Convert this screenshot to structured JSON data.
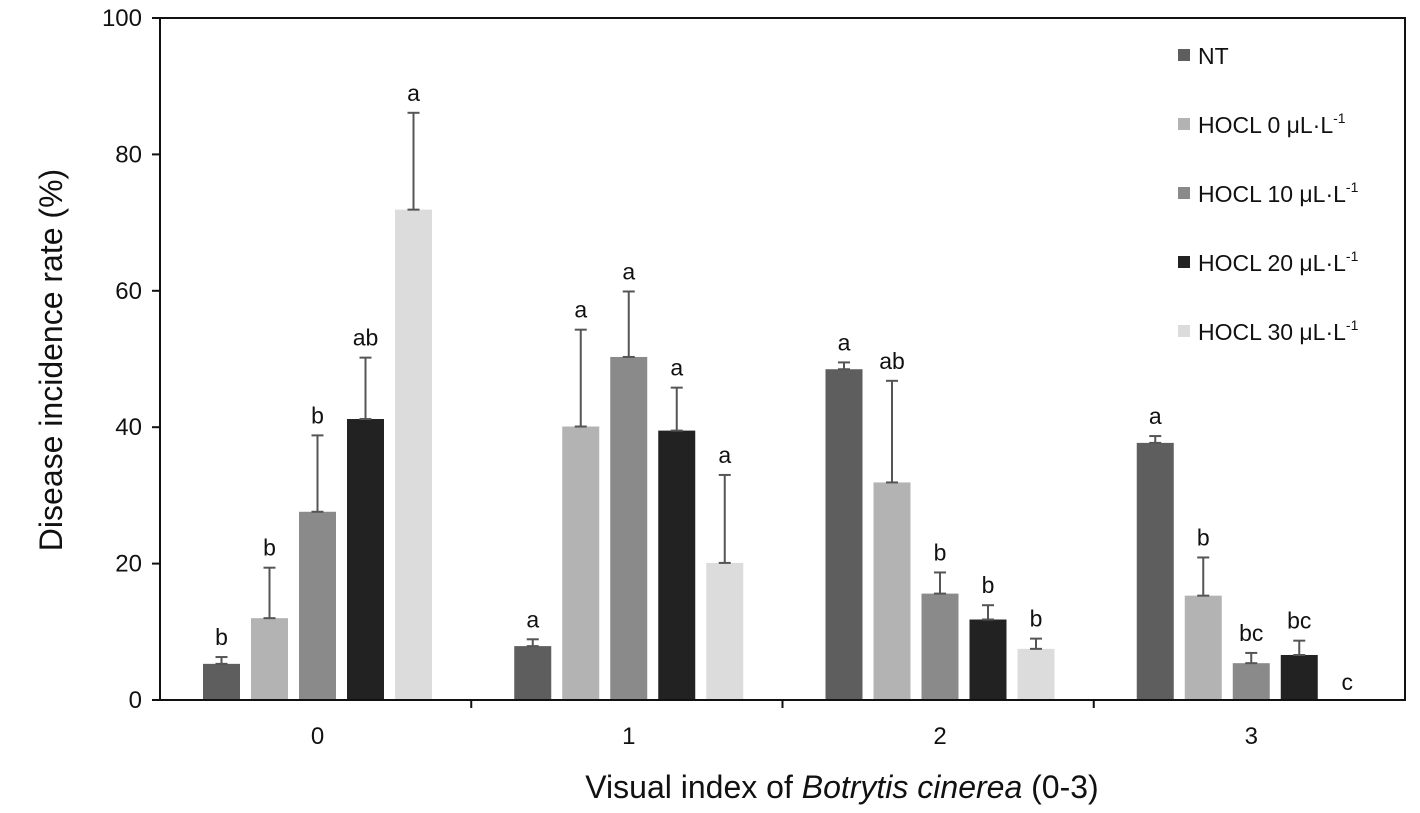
{
  "chart_data": {
    "type": "bar",
    "xlabel": {
      "prefix": "Visual index of ",
      "italic": "Botrytis cinerea",
      "suffix": " (0-3)"
    },
    "ylabel": "Disease incidence rate (%)",
    "ylim": [
      0,
      100
    ],
    "yticks": [
      0,
      20,
      40,
      60,
      80,
      100
    ],
    "categories": [
      "0",
      "1",
      "2",
      "3"
    ],
    "legend_position": "top-right",
    "grid": false,
    "series": [
      {
        "name": "NT",
        "unit": "",
        "color": "#5e5e5e",
        "values": [
          5.3,
          7.9,
          48.5,
          37.7
        ],
        "errors": [
          1.0,
          1.0,
          1.0,
          1.0
        ],
        "letters": [
          "b",
          "a",
          "a",
          "a"
        ]
      },
      {
        "name": "HOCL 0 μL·L",
        "unit": "-1",
        "color": "#b3b3b3",
        "values": [
          12.0,
          40.1,
          31.9,
          15.3
        ],
        "errors": [
          7.4,
          14.2,
          14.9,
          5.6
        ],
        "letters": [
          "b",
          "a",
          "ab",
          "b"
        ]
      },
      {
        "name": "HOCL 10 μL·L",
        "unit": "-1",
        "color": "#8a8a8a",
        "values": [
          27.6,
          50.3,
          15.6,
          5.4
        ],
        "errors": [
          11.2,
          9.6,
          3.1,
          1.5
        ],
        "letters": [
          "b",
          "a",
          "b",
          "bc"
        ]
      },
      {
        "name": "HOCL 20 μL·L",
        "unit": "-1",
        "color": "#222222",
        "values": [
          41.2,
          39.5,
          11.8,
          6.6
        ],
        "errors": [
          9.0,
          6.3,
          2.1,
          2.1
        ],
        "letters": [
          "ab",
          "a",
          "b",
          "bc"
        ]
      },
      {
        "name": "HOCL 30 μL·L",
        "unit": "-1",
        "color": "#dcdcdc",
        "values": [
          71.9,
          20.1,
          7.5,
          0
        ],
        "errors": [
          14.2,
          12.9,
          1.5,
          0
        ],
        "letters": [
          "a",
          "a",
          "b",
          "c"
        ]
      }
    ]
  }
}
